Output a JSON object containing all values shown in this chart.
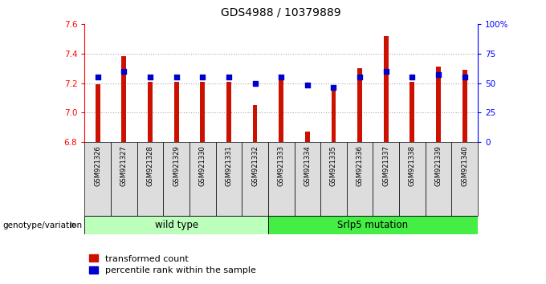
{
  "title": "GDS4988 / 10379889",
  "samples": [
    "GSM921326",
    "GSM921327",
    "GSM921328",
    "GSM921329",
    "GSM921330",
    "GSM921331",
    "GSM921332",
    "GSM921333",
    "GSM921334",
    "GSM921335",
    "GSM921336",
    "GSM921337",
    "GSM921338",
    "GSM921339",
    "GSM921340"
  ],
  "transformed_count": [
    7.19,
    7.38,
    7.21,
    7.21,
    7.21,
    7.21,
    7.05,
    7.25,
    6.87,
    7.16,
    7.3,
    7.52,
    7.21,
    7.31,
    7.29
  ],
  "percentile_rank": [
    55,
    60,
    55,
    55,
    55,
    55,
    50,
    55,
    48,
    46,
    55,
    60,
    55,
    57,
    55
  ],
  "ylim_left": [
    6.8,
    7.6
  ],
  "ylim_right": [
    0,
    100
  ],
  "yticks_left": [
    6.8,
    7.0,
    7.2,
    7.4,
    7.6
  ],
  "yticks_right": [
    0,
    25,
    50,
    75,
    100
  ],
  "ytick_labels_right": [
    "0",
    "25",
    "50",
    "75",
    "100%"
  ],
  "groups": [
    {
      "label": "wild type",
      "start": 0,
      "end": 7,
      "color": "#bbffbb"
    },
    {
      "label": "Srlp5 mutation",
      "start": 7,
      "end": 15,
      "color": "#44ee44"
    }
  ],
  "bar_color": "#cc1100",
  "dot_color": "#0000cc",
  "grid_color": "#aaaaaa",
  "bg_color": "#ffffff",
  "title_fontsize": 10,
  "tick_fontsize": 7.5,
  "sample_fontsize": 6,
  "legend_fontsize": 8,
  "group_label_fontsize": 8.5,
  "genotype_label": "genotype/variation",
  "legend_items": [
    "transformed count",
    "percentile rank within the sample"
  ],
  "bar_width": 0.18
}
